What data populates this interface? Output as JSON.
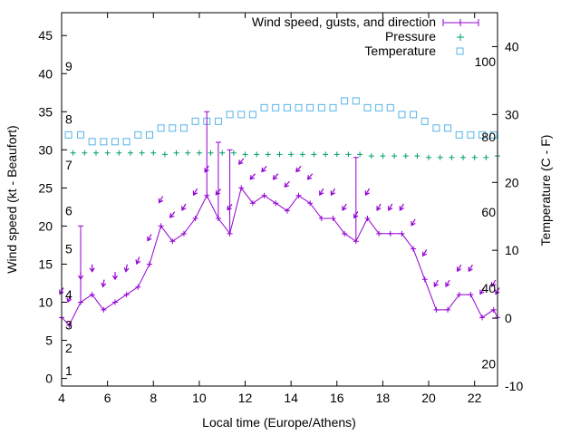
{
  "chart_data": {
    "type": "line",
    "xlabel": "Local time (Europe/Athens)",
    "ylabel_left": "Wind speed (kt - Beaufort)",
    "ylabel_right": "Temperature (C - F)",
    "xlim": [
      4,
      23
    ],
    "ylim_left": [
      -1,
      48
    ],
    "ylim_right": [
      -10,
      45
    ],
    "x_ticks": [
      4,
      6,
      8,
      10,
      12,
      14,
      16,
      18,
      20,
      22
    ],
    "y_ticks_left": [
      0,
      5,
      10,
      15,
      20,
      25,
      30,
      35,
      40,
      45
    ],
    "y_ticks_right": [
      -10,
      0,
      10,
      20,
      30,
      40
    ],
    "beaufort_labels": [
      {
        "label": "1",
        "kt": 1
      },
      {
        "label": "2",
        "kt": 4
      },
      {
        "label": "3",
        "kt": 7
      },
      {
        "label": "4",
        "kt": 11
      },
      {
        "label": "5",
        "kt": 17
      },
      {
        "label": "6",
        "kt": 22
      },
      {
        "label": "7",
        "kt": 28
      },
      {
        "label": "8",
        "kt": 34
      },
      {
        "label": "9",
        "kt": 41
      }
    ],
    "fahrenheit_labels": [
      {
        "label": "20",
        "celsius": -6.7
      },
      {
        "label": "40",
        "celsius": 4.4
      },
      {
        "label": "60",
        "celsius": 15.6
      },
      {
        "label": "80",
        "celsius": 26.7
      },
      {
        "label": "100",
        "celsius": 37.8
      }
    ],
    "legend_position": "top-right",
    "colors": {
      "wind": "#9400d3",
      "pressure": "#009e73",
      "temperature": "#56b4e9"
    },
    "series": [
      {
        "name": "Wind speed, gusts, and direction",
        "x": [
          4.0,
          4.33,
          4.83,
          5.33,
          5.83,
          6.33,
          6.83,
          7.33,
          7.83,
          8.33,
          8.83,
          9.33,
          9.83,
          10.33,
          10.83,
          11.33,
          11.83,
          12.33,
          12.83,
          13.33,
          13.83,
          14.33,
          14.83,
          15.33,
          15.83,
          16.33,
          16.83,
          17.33,
          17.83,
          18.33,
          18.83,
          19.33,
          19.83,
          20.33,
          20.83,
          21.33,
          21.83,
          22.33,
          22.83,
          23.0
        ],
        "values": [
          8,
          7,
          10,
          11,
          9,
          10,
          11,
          12,
          15,
          20,
          18,
          19,
          21,
          24,
          21,
          19,
          25,
          23,
          24,
          23,
          22,
          24,
          23,
          21,
          21,
          19,
          18,
          21,
          19,
          19,
          19,
          17,
          13,
          9,
          9,
          11,
          11,
          8,
          9,
          8
        ],
        "gust_bars": [
          {
            "x": 4.83,
            "low": 10,
            "high": 20
          },
          {
            "x": 10.33,
            "low": 24,
            "high": 35
          },
          {
            "x": 10.83,
            "low": 21,
            "high": 31
          },
          {
            "x": 11.33,
            "low": 19,
            "high": 30
          },
          {
            "x": 16.83,
            "low": 18,
            "high": 29
          }
        ],
        "directions_deg": [
          30,
          20,
          0,
          0,
          10,
          0,
          10,
          20,
          30,
          30,
          40,
          30,
          30,
          30,
          40,
          40,
          40,
          40,
          40,
          40,
          40,
          40,
          40,
          30,
          30,
          30,
          30,
          30,
          30,
          30,
          30,
          30,
          30,
          30,
          30,
          30,
          30,
          30,
          30,
          30
        ]
      },
      {
        "name": "Pressure",
        "x": [
          4.5,
          5.0,
          5.5,
          6.0,
          6.5,
          7.0,
          7.5,
          8.0,
          8.5,
          9.0,
          9.5,
          10.0,
          10.5,
          11.0,
          11.5,
          12.0,
          12.5,
          13.0,
          13.5,
          14.0,
          14.5,
          15.0,
          15.5,
          16.0,
          16.5,
          17.0,
          17.5,
          18.0,
          18.5,
          19.0,
          19.5,
          20.0,
          20.5,
          21.0,
          21.5,
          22.0,
          22.5,
          23.0
        ],
        "values": [
          29.6,
          29.6,
          29.6,
          29.6,
          29.6,
          29.6,
          29.6,
          29.6,
          29.4,
          29.6,
          29.6,
          29.6,
          29.6,
          29.6,
          29.6,
          29.4,
          29.4,
          29.4,
          29.4,
          29.4,
          29.4,
          29.4,
          29.4,
          29.4,
          29.4,
          29.4,
          29.2,
          29.2,
          29.2,
          29.2,
          29.2,
          29.0,
          29.0,
          29.0,
          29.0,
          29.0,
          29.0,
          29.2
        ]
      },
      {
        "name": "Temperature",
        "x": [
          4.3,
          4.83,
          5.33,
          5.83,
          6.33,
          6.83,
          7.33,
          7.83,
          8.33,
          8.83,
          9.33,
          9.83,
          10.33,
          10.83,
          11.33,
          11.83,
          12.33,
          12.83,
          13.33,
          13.83,
          14.33,
          14.83,
          15.33,
          15.83,
          16.33,
          16.83,
          17.33,
          17.83,
          18.33,
          18.83,
          19.33,
          19.83,
          20.33,
          20.83,
          21.33,
          21.83,
          22.33,
          22.83
        ],
        "values": [
          27,
          27,
          26,
          26,
          26,
          26,
          27,
          27,
          28,
          28,
          28,
          29,
          29,
          29,
          30,
          30,
          30,
          31,
          31,
          31,
          31,
          31,
          31,
          31,
          32,
          32,
          31,
          31,
          31,
          30,
          30,
          29,
          28,
          28,
          27,
          27,
          27,
          27
        ]
      }
    ]
  }
}
